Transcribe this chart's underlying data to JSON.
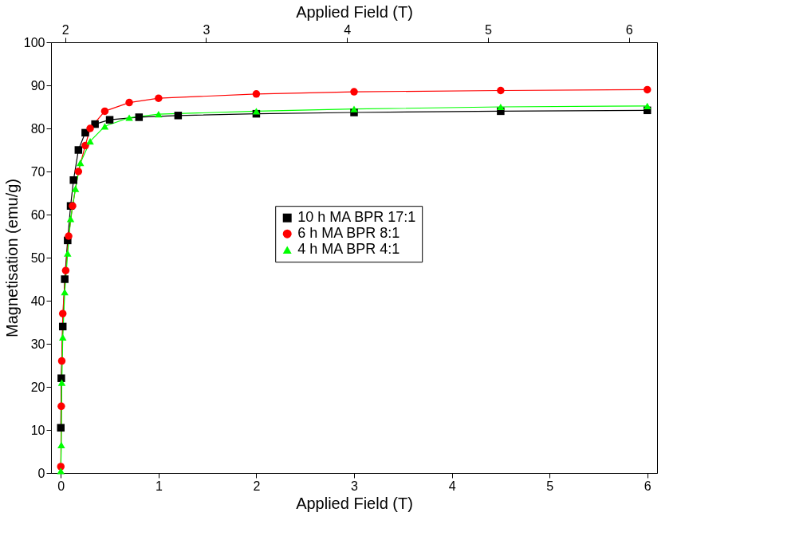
{
  "chart_data": {
    "type": "line",
    "xlabel": "Applied Field (T)",
    "ylabel": "Magnetisation (emu/g)",
    "x2label": "Applied Field (T)",
    "xlim": [
      -0.1,
      6.1
    ],
    "xticks": [
      0,
      1,
      2,
      3,
      4,
      5,
      6
    ],
    "ylim": [
      0,
      100
    ],
    "yticks": [
      0,
      10,
      20,
      30,
      40,
      50,
      60,
      70,
      80,
      90,
      100
    ],
    "x2lim": [
      1.9,
      6.2
    ],
    "x2ticks": [
      2,
      3,
      4,
      5,
      6
    ],
    "grid": false,
    "legend": "right",
    "line_style": "solid",
    "series": [
      {
        "name": "10 h MA BPR 17:1",
        "color": "#000000",
        "marker": "square",
        "x": [
          0,
          0.005,
          0.02,
          0.04,
          0.07,
          0.1,
          0.13,
          0.18,
          0.25,
          0.35,
          0.5,
          0.8,
          1.2,
          2,
          3,
          4.5,
          6
        ],
        "values": [
          10.5,
          22,
          34,
          45,
          54,
          62,
          68,
          75,
          79,
          81,
          82,
          82.6,
          83,
          83.4,
          83.7,
          84,
          84.2
        ]
      },
      {
        "name": "6 h MA BPR 8:1",
        "color": "#ff0000",
        "marker": "circle",
        "x": [
          0,
          0.005,
          0.01,
          0.02,
          0.05,
          0.08,
          0.12,
          0.18,
          0.25,
          0.3,
          0.45,
          0.7,
          1,
          2,
          3,
          4.5,
          6
        ],
        "values": [
          1.5,
          15.5,
          26,
          37,
          47,
          55,
          62,
          70,
          76,
          80,
          84,
          86,
          87,
          88,
          88.5,
          88.8,
          89
        ]
      },
      {
        "name": "4 h MA BPR 4:1",
        "color": "#00ff00",
        "marker": "triangle",
        "x": [
          0,
          0.005,
          0.01,
          0.02,
          0.04,
          0.07,
          0.1,
          0.15,
          0.2,
          0.3,
          0.45,
          0.7,
          1,
          2,
          3,
          4.5,
          6
        ],
        "values": [
          0.5,
          6.5,
          21,
          31.5,
          42,
          51,
          59,
          66,
          72,
          77,
          80.5,
          82.5,
          83.3,
          84,
          84.5,
          85,
          85.2
        ]
      }
    ]
  }
}
